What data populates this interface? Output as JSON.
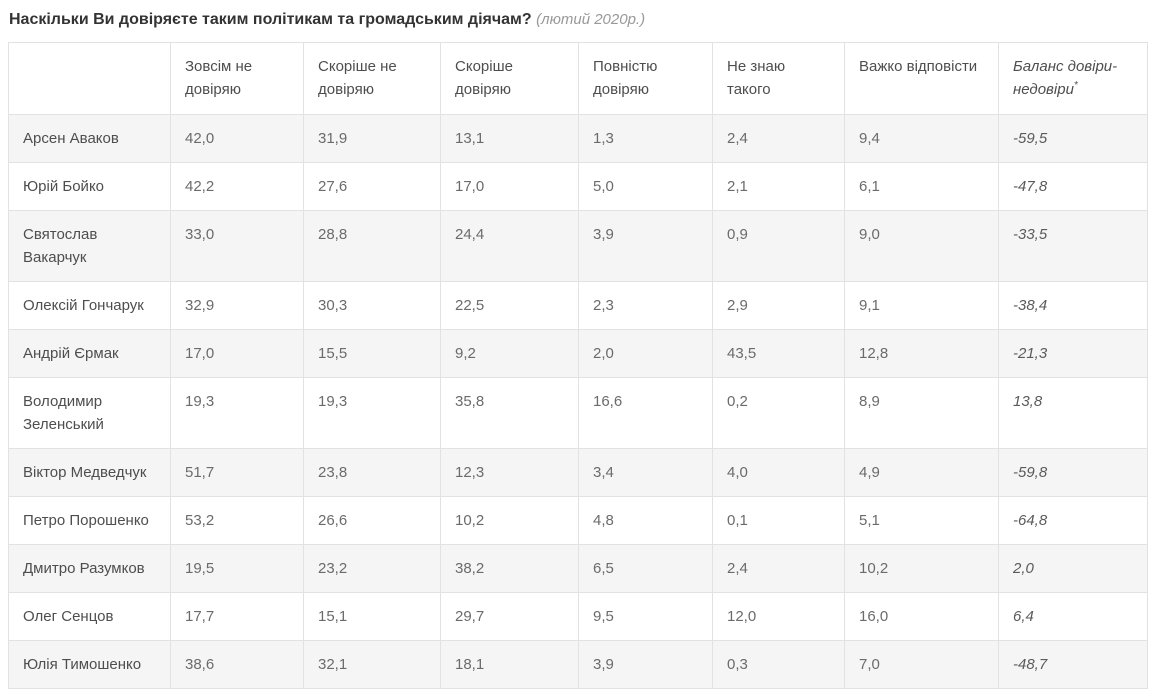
{
  "title": {
    "question": "Наскільки Ви довіряєте таким політикам та громадським діячам?",
    "period": "(лютий 2020р.)"
  },
  "table": {
    "header": {
      "empty": "",
      "labels": [
        "Зовсім не довіряю",
        "Скоріше не довіряю",
        "Скоріше довіряю",
        "Повністю довіряю",
        "Не знаю такого",
        "Важко відповісти"
      ],
      "balance": {
        "label": "Баланс довіри-недовіри",
        "footnote_mark": "*"
      }
    },
    "rows": [
      {
        "name": "Арсен Аваков",
        "values": [
          "42,0",
          "31,9",
          "13,1",
          "1,3",
          "2,4",
          "9,4"
        ],
        "balance": "-59,5"
      },
      {
        "name": "Юрій Бойко",
        "values": [
          "42,2",
          "27,6",
          "17,0",
          "5,0",
          "2,1",
          "6,1"
        ],
        "balance": "-47,8"
      },
      {
        "name": "Святослав Вакарчук",
        "values": [
          "33,0",
          "28,8",
          "24,4",
          "3,9",
          "0,9",
          "9,0"
        ],
        "balance": "-33,5"
      },
      {
        "name": "Олексій Гончарук",
        "values": [
          "32,9",
          "30,3",
          "22,5",
          "2,3",
          "2,9",
          "9,1"
        ],
        "balance": "-38,4"
      },
      {
        "name": "Андрій Єрмак",
        "values": [
          "17,0",
          "15,5",
          "9,2",
          "2,0",
          "43,5",
          "12,8"
        ],
        "balance": "-21,3"
      },
      {
        "name": "Володимир Зеленський",
        "values": [
          "19,3",
          "19,3",
          "35,8",
          "16,6",
          "0,2",
          "8,9"
        ],
        "balance": "13,8"
      },
      {
        "name": "Віктор Медведчук",
        "values": [
          "51,7",
          "23,8",
          "12,3",
          "3,4",
          "4,0",
          "4,9"
        ],
        "balance": "-59,8"
      },
      {
        "name": "Петро Порошенко",
        "values": [
          "53,2",
          "26,6",
          "10,2",
          "4,8",
          "0,1",
          "5,1"
        ],
        "balance": "-64,8"
      },
      {
        "name": "Дмитро Разумков",
        "values": [
          "19,5",
          "23,2",
          "38,2",
          "6,5",
          "2,4",
          "10,2"
        ],
        "balance": "2,0"
      },
      {
        "name": "Олег Сенцов",
        "values": [
          "17,7",
          "15,1",
          "29,7",
          "9,5",
          "12,0",
          "16,0"
        ],
        "balance": "6,4"
      },
      {
        "name": "Юлія Тимошенко",
        "values": [
          "38,6",
          "32,1",
          "18,1",
          "3,9",
          "0,3",
          "7,0"
        ],
        "balance": "-48,7"
      }
    ]
  },
  "colors": {
    "row_stripe": "#f5f5f5",
    "border": "#e2e2e2",
    "title_text": "#333333",
    "body_text": "#6b6b6b"
  },
  "chart_data": {
    "type": "table",
    "title": "Наскільки Ви довіряєте таким політикам та громадським діячам? (лютий 2020р.)",
    "columns": [
      "Зовсім не довіряю",
      "Скоріше не довіряю",
      "Скоріше довіряю",
      "Повністю довіряю",
      "Не знаю такого",
      "Важко відповісти",
      "Баланс довіри-недовіри*"
    ],
    "rows": [
      {
        "name": "Арсен Аваков",
        "values": [
          42.0,
          31.9,
          13.1,
          1.3,
          2.4,
          9.4
        ],
        "balance": -59.5
      },
      {
        "name": "Юрій Бойко",
        "values": [
          42.2,
          27.6,
          17.0,
          5.0,
          2.1,
          6.1
        ],
        "balance": -47.8
      },
      {
        "name": "Святослав Вакарчук",
        "values": [
          33.0,
          28.8,
          24.4,
          3.9,
          0.9,
          9.0
        ],
        "balance": -33.5
      },
      {
        "name": "Олексій Гончарук",
        "values": [
          32.9,
          30.3,
          22.5,
          2.3,
          2.9,
          9.1
        ],
        "balance": -38.4
      },
      {
        "name": "Андрій Єрмак",
        "values": [
          17.0,
          15.5,
          9.2,
          2.0,
          43.5,
          12.8
        ],
        "balance": -21.3
      },
      {
        "name": "Володимир Зеленський",
        "values": [
          19.3,
          19.3,
          35.8,
          16.6,
          0.2,
          8.9
        ],
        "balance": 13.8
      },
      {
        "name": "Віктор Медведчук",
        "values": [
          51.7,
          23.8,
          12.3,
          3.4,
          4.0,
          4.9
        ],
        "balance": -59.8
      },
      {
        "name": "Петро Порошенко",
        "values": [
          53.2,
          26.6,
          10.2,
          4.8,
          0.1,
          5.1
        ],
        "balance": -64.8
      },
      {
        "name": "Дмитро Разумков",
        "values": [
          19.5,
          23.2,
          38.2,
          6.5,
          2.4,
          10.2
        ],
        "balance": 2.0
      },
      {
        "name": "Олег Сенцов",
        "values": [
          17.7,
          15.1,
          29.7,
          9.5,
          12.0,
          16.0
        ],
        "balance": 6.4
      },
      {
        "name": "Юлія Тимошенко",
        "values": [
          38.6,
          32.1,
          18.1,
          3.9,
          0.3,
          7.0
        ],
        "balance": -48.7
      }
    ]
  }
}
